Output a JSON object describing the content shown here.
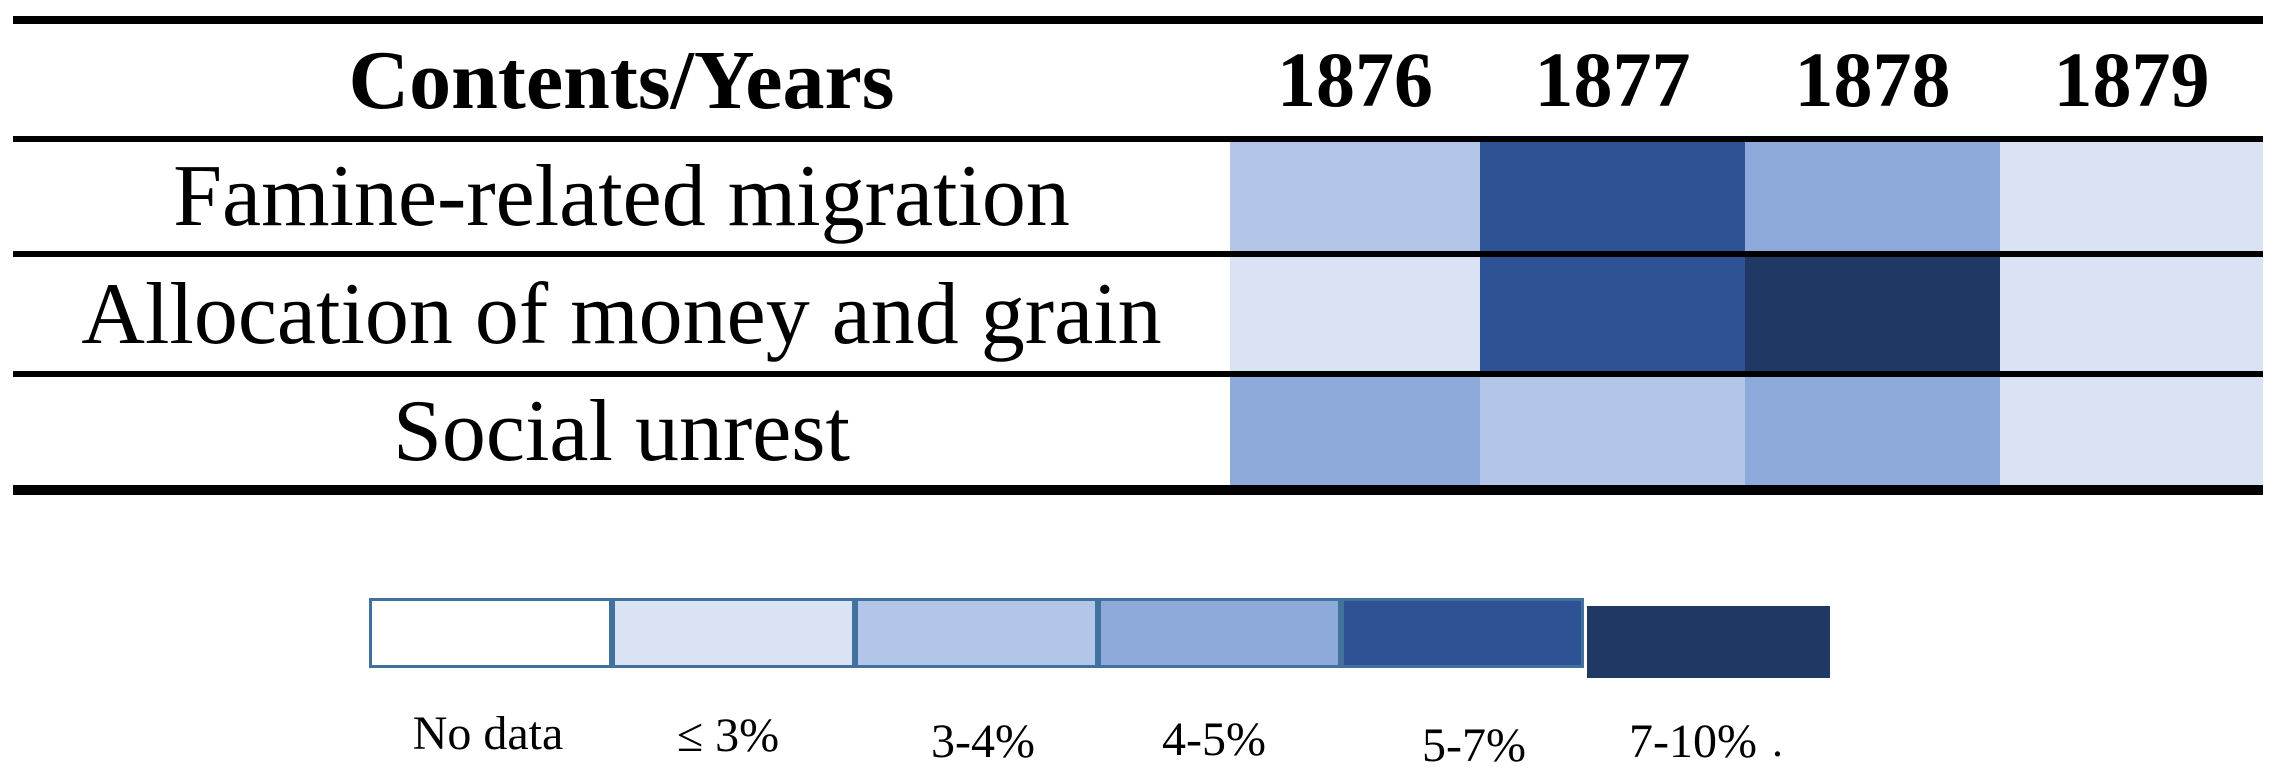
{
  "chart_data": {
    "type": "heatmap",
    "corner_label": "Contents/Years",
    "x": [
      "1876",
      "1877",
      "1878",
      "1879"
    ],
    "y": [
      "Famine-related migration",
      "Allocation of money and grain",
      "Social unrest"
    ],
    "values": [
      [
        "3-4%",
        "5-7%",
        "4-5%",
        "≤ 3%"
      ],
      [
        "≤ 3%",
        "5-7%",
        "7-10%",
        "≤ 3%"
      ],
      [
        "4-5%",
        "3-4%",
        "4-5%",
        "≤ 3%"
      ]
    ],
    "legend": {
      "position": "bottom",
      "items": [
        {
          "label": "No data",
          "color": "#FFFFFF"
        },
        {
          "label": "≤ 3%",
          "color": "#DAE3F3"
        },
        {
          "label": "3-4%",
          "color": "#B4C6E7"
        },
        {
          "label": "4-5%",
          "color": "#8EAADB"
        },
        {
          "label": "5-7%",
          "color": "#2E5395"
        },
        {
          "label": "7-10%",
          "color": "#1F3864"
        }
      ],
      "swatch_border_color": "#41719C",
      "trailing_period": "."
    },
    "line_color": "#000000",
    "background": "#FFFFFF"
  }
}
